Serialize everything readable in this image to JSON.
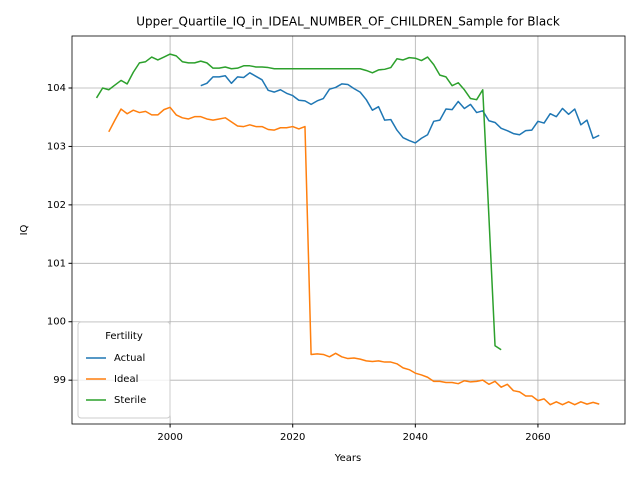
{
  "chart_data": {
    "type": "line",
    "title": "Upper_Quartile_IQ_in_IDEAL_NUMBER_OF_CHILDREN_Sample for Black",
    "xlabel": "Years",
    "ylabel": "IQ",
    "x": [
      1988,
      1989,
      1990,
      1991,
      1992,
      1993,
      1994,
      1995,
      1996,
      1997,
      1998,
      1999,
      2000,
      2001,
      2002,
      2003,
      2004,
      2005,
      2006,
      2007,
      2008,
      2009,
      2010,
      2011,
      2012,
      2013,
      2014,
      2015,
      2016,
      2017,
      2018,
      2019,
      2020,
      2021,
      2022,
      2023,
      2024,
      2025,
      2026,
      2027,
      2028,
      2029,
      2030,
      2031,
      2032,
      2033,
      2034,
      2035,
      2036,
      2037,
      2038,
      2039,
      2040,
      2041,
      2042,
      2043,
      2044,
      2045,
      2046,
      2047,
      2048,
      2049,
      2050,
      2051,
      2052,
      2053,
      2054,
      2055,
      2056,
      2057,
      2058,
      2059,
      2060,
      2061,
      2062,
      2063,
      2064,
      2065,
      2066,
      2067,
      2068,
      2069,
      2070
    ],
    "series": [
      {
        "name": "Actual",
        "color": "#1f77b4",
        "values": [
          null,
          null,
          null,
          null,
          null,
          null,
          null,
          null,
          null,
          null,
          null,
          null,
          null,
          null,
          null,
          null,
          null,
          104.04,
          104.08,
          104.19,
          104.19,
          104.21,
          104.08,
          104.19,
          104.18,
          104.26,
          104.2,
          104.14,
          103.96,
          103.93,
          103.97,
          103.91,
          103.87,
          103.79,
          103.78,
          103.72,
          103.78,
          103.82,
          103.98,
          104.01,
          104.07,
          104.06,
          103.99,
          103.93,
          103.8,
          103.62,
          103.68,
          103.45,
          103.46,
          103.28,
          103.15,
          103.1,
          103.06,
          103.14,
          103.2,
          103.43,
          103.45,
          103.64,
          103.63,
          103.77,
          103.65,
          103.72,
          103.58,
          103.61,
          103.44,
          103.41,
          103.31,
          103.27,
          103.22,
          103.2,
          103.27,
          103.28,
          103.43,
          103.4,
          103.56,
          103.51,
          103.65,
          103.55,
          103.64,
          103.37,
          103.45,
          103.14,
          103.19
        ]
      },
      {
        "name": "Ideal",
        "color": "#ff7f0e",
        "values": [
          null,
          null,
          103.25,
          103.45,
          103.64,
          103.56,
          103.62,
          103.58,
          103.6,
          103.54,
          103.54,
          103.63,
          103.67,
          103.54,
          103.49,
          103.47,
          103.51,
          103.51,
          103.47,
          103.45,
          103.47,
          103.49,
          103.42,
          103.35,
          103.34,
          103.37,
          103.34,
          103.34,
          103.29,
          103.28,
          103.32,
          103.32,
          103.34,
          103.3,
          103.34,
          99.44,
          99.45,
          99.44,
          99.4,
          99.46,
          99.4,
          99.37,
          99.38,
          99.36,
          99.33,
          99.32,
          99.33,
          99.31,
          99.31,
          99.28,
          99.21,
          99.18,
          99.12,
          99.09,
          99.05,
          98.98,
          98.98,
          98.96,
          98.96,
          98.94,
          98.99,
          98.97,
          98.98,
          99.0,
          98.93,
          98.98,
          98.88,
          98.93,
          98.82,
          98.8,
          98.73,
          98.73,
          98.65,
          98.68,
          98.58,
          98.63,
          98.58,
          98.63,
          98.58,
          98.63,
          98.59,
          98.62,
          98.59
        ]
      },
      {
        "name": "Sterile",
        "color": "#2ca02c",
        "values": [
          103.83,
          104.0,
          103.97,
          104.05,
          104.13,
          104.07,
          104.27,
          104.43,
          104.45,
          104.53,
          104.48,
          104.53,
          104.58,
          104.55,
          104.45,
          104.43,
          104.43,
          104.46,
          104.43,
          104.34,
          104.34,
          104.36,
          104.33,
          104.34,
          104.38,
          104.38,
          104.36,
          104.36,
          104.35,
          104.33,
          104.33,
          104.33,
          104.33,
          104.33,
          104.33,
          104.33,
          104.33,
          104.33,
          104.33,
          104.33,
          104.33,
          104.33,
          104.33,
          104.33,
          104.3,
          104.26,
          104.31,
          104.32,
          104.35,
          104.5,
          104.48,
          104.52,
          104.51,
          104.47,
          104.53,
          104.4,
          104.22,
          104.19,
          104.04,
          104.09,
          103.97,
          103.82,
          103.8,
          103.97,
          101.8,
          99.59,
          99.52,
          null,
          null,
          null,
          null,
          null,
          null,
          null,
          null,
          null,
          null,
          null,
          null,
          null,
          null,
          null,
          null
        ]
      }
    ],
    "xlim": [
      1984,
      2074.2
    ],
    "ylim": [
      98.25,
      104.89
    ],
    "xticks": [
      2000,
      2020,
      2040,
      2060
    ],
    "yticks": [
      99,
      100,
      101,
      102,
      103,
      104
    ],
    "grid": true,
    "legend_title": "Fertility",
    "legend_loc": "lower left"
  }
}
